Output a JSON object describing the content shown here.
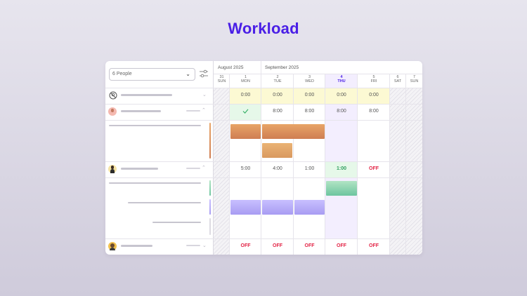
{
  "title": "Workload",
  "people_select": {
    "value": "6 People"
  },
  "months": [
    "August 2025",
    "September 2025"
  ],
  "days": [
    {
      "num": "31",
      "name": "SUN"
    },
    {
      "num": "1",
      "name": "MON"
    },
    {
      "num": "2",
      "name": "TUE"
    },
    {
      "num": "3",
      "name": "WED"
    },
    {
      "num": "4",
      "name": "THU"
    },
    {
      "num": "5",
      "name": "FRI"
    },
    {
      "num": "6",
      "name": "SAT"
    },
    {
      "num": "7",
      "name": "SUN"
    }
  ],
  "unassigned_row": [
    "0:00",
    "0:00",
    "0:00",
    "0:00",
    "0:00"
  ],
  "person1_row": [
    "8:00",
    "8:00",
    "8:00",
    "8:00"
  ],
  "person2_row": [
    "5:00",
    "4:00",
    "1:00",
    "1:00",
    "OFF"
  ],
  "person3_row": [
    "OFF",
    "OFF",
    "OFF",
    "OFF",
    "OFF"
  ],
  "icons": {
    "unassigned": "unassigned-icon",
    "filter": "filter-sliders-icon",
    "check": "checkmark-icon",
    "chevron": "chevron-icon"
  },
  "colors": {
    "accent": "#4a1fe6",
    "off": "#e32345",
    "highlight_yellow": "#fcf9d3",
    "selected_day": "#f3eefe",
    "today_green": "#e6f8e9"
  }
}
